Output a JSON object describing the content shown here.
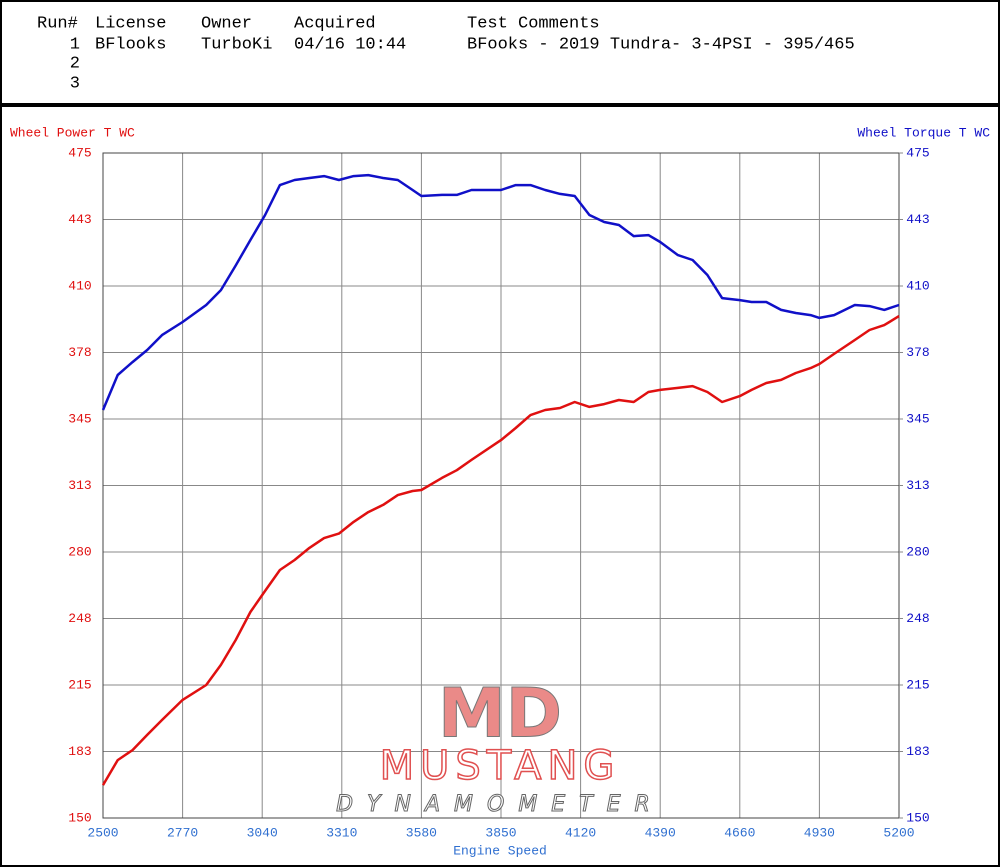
{
  "run_table": {
    "columns": [
      "Run#",
      "License",
      "Owner",
      "Acquired",
      "Test Comments"
    ],
    "rows": [
      [
        "1",
        "BFlooks",
        "TurboKi",
        "04/16 10:44",
        "BFooks - 2019 Tundra- 3-4PSI - 395/465"
      ],
      [
        "2"
      ],
      [
        "3"
      ]
    ]
  },
  "logo": {
    "mark": "MD",
    "name": "MUSTANG",
    "subtitle": "DYNAMOMETER"
  },
  "chart_data": {
    "type": "line",
    "x_label": "Engine Speed",
    "x": [
      2500,
      2550,
      2600,
      2650,
      2700,
      2770,
      2850,
      2900,
      2950,
      3000,
      3050,
      3100,
      3150,
      3200,
      3250,
      3300,
      3350,
      3400,
      3450,
      3500,
      3550,
      3580,
      3650,
      3700,
      3750,
      3850,
      3900,
      3950,
      4000,
      4050,
      4100,
      4150,
      4200,
      4250,
      4300,
      4350,
      4390,
      4450,
      4500,
      4550,
      4600,
      4660,
      4700,
      4750,
      4800,
      4850,
      4900,
      4930,
      4980,
      5050,
      5100,
      5150,
      5200
    ],
    "series": [
      {
        "name": "Wheel Power T WC",
        "color": "#e01010",
        "axis": "y",
        "values": [
          166.1,
          178.3,
          183.2,
          190.6,
          197.9,
          207.7,
          215,
          224.8,
          237,
          250.7,
          261,
          271.2,
          276.1,
          282,
          286.8,
          289,
          294.7,
          299.5,
          303,
          307.8,
          309.8,
          310.3,
          316.2,
          320,
          325,
          334.7,
          340.6,
          346.9,
          349.4,
          350.4,
          353.3,
          350.9,
          352.3,
          354.3,
          353.3,
          358.2,
          359.2,
          360.2,
          361.1,
          358.2,
          353.3,
          356.2,
          359.2,
          362.6,
          364.1,
          367.5,
          369.9,
          371.9,
          376.8,
          383.6,
          388.5,
          390.9,
          395.3
        ]
      },
      {
        "name": "Wheel Torque T WC",
        "color": "#1010c8",
        "axis": "y2",
        "values": [
          349.4,
          366.5,
          372.8,
          378.7,
          386,
          392.4,
          400.7,
          408,
          420,
          432.5,
          444.7,
          459.3,
          461.8,
          462.8,
          463.7,
          461.8,
          463.7,
          464.2,
          462.8,
          461.8,
          456.9,
          454,
          454.5,
          454.5,
          456.9,
          456.9,
          459.3,
          459.3,
          456.9,
          455,
          454,
          444.7,
          441.3,
          439.8,
          434.4,
          434.9,
          431.5,
          425.1,
          422.7,
          415.4,
          404.1,
          403.1,
          402.2,
          402.2,
          398.3,
          396.8,
          395.8,
          394.4,
          395.8,
          400.7,
          400.2,
          398.3,
          400.7
        ]
      }
    ],
    "xlim": [
      2500,
      5200
    ],
    "xticks": [
      2500,
      2770,
      3040,
      3310,
      3580,
      3850,
      4120,
      4390,
      4660,
      4930,
      5200
    ],
    "ylim": [
      150,
      475
    ],
    "yticks": [
      150,
      {
        "value": 182.5,
        "label": "183"
      },
      215,
      {
        "value": 247.5,
        "label": "248"
      },
      280,
      {
        "value": 312.5,
        "label": "313"
      },
      345,
      {
        "value": 377.5,
        "label": "378"
      },
      410,
      {
        "value": 442.5,
        "label": "443"
      },
      475
    ],
    "y2lim": [
      150,
      475
    ],
    "y2ticks": [
      150,
      {
        "value": 182.5,
        "label": "183"
      },
      215,
      {
        "value": 247.5,
        "label": "248"
      },
      280,
      {
        "value": 312.5,
        "label": "313"
      },
      345,
      {
        "value": 377.5,
        "label": "378"
      },
      410,
      {
        "value": 442.5,
        "label": "443"
      },
      475
    ],
    "grid": true
  }
}
